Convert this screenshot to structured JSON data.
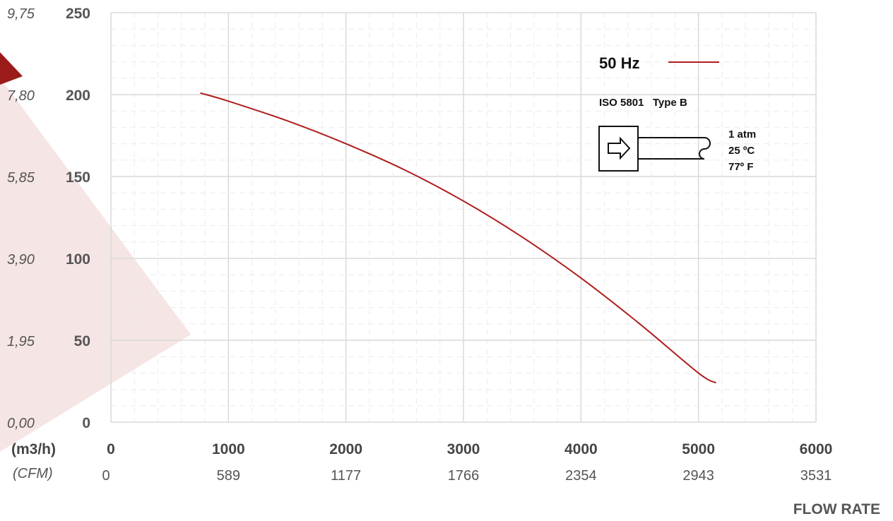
{
  "colors": {
    "series": "#b01e1e",
    "grid_major": "#d9d9d9",
    "grid_minor": "#ececec",
    "background_decoration": "#b22a2a"
  },
  "axes": {
    "x_unit_primary": "(m3/h)",
    "x_unit_secondary": "(CFM)",
    "x_title": "FLOW RATE",
    "x_ticks_primary": [
      "0",
      "1000",
      "2000",
      "3000",
      "4000",
      "5000",
      "6000"
    ],
    "x_ticks_secondary": [
      "0",
      "589",
      "1177",
      "1766",
      "2354",
      "2943",
      "3531"
    ],
    "y_ticks_primary": [
      "0",
      "50",
      "100",
      "150",
      "200",
      "250"
    ],
    "y_ticks_secondary": [
      "0,00",
      "1,95",
      "3,90",
      "5,85",
      "7,80",
      "9,75"
    ]
  },
  "legend": {
    "series_name": "50 Hz",
    "standard": "ISO 5801   Type B",
    "conditions": [
      "1 atm",
      "25 ºC",
      "77º F"
    ],
    "icon": "arrow-right-icon"
  },
  "chart_data": {
    "type": "line",
    "title": "",
    "xlabel": "FLOW RATE",
    "ylabel": "",
    "xlim": [
      0,
      6000
    ],
    "ylim": [
      0,
      250
    ],
    "grid": true,
    "legend_position": "top-right",
    "series": [
      {
        "name": "50 Hz",
        "x": [
          760,
          1000,
          1500,
          2000,
          2500,
          3000,
          3500,
          4000,
          4500,
          5000,
          5150
        ],
        "y": [
          201,
          196,
          184,
          170,
          154,
          135,
          113,
          88,
          60,
          30,
          24
        ]
      }
    ]
  }
}
